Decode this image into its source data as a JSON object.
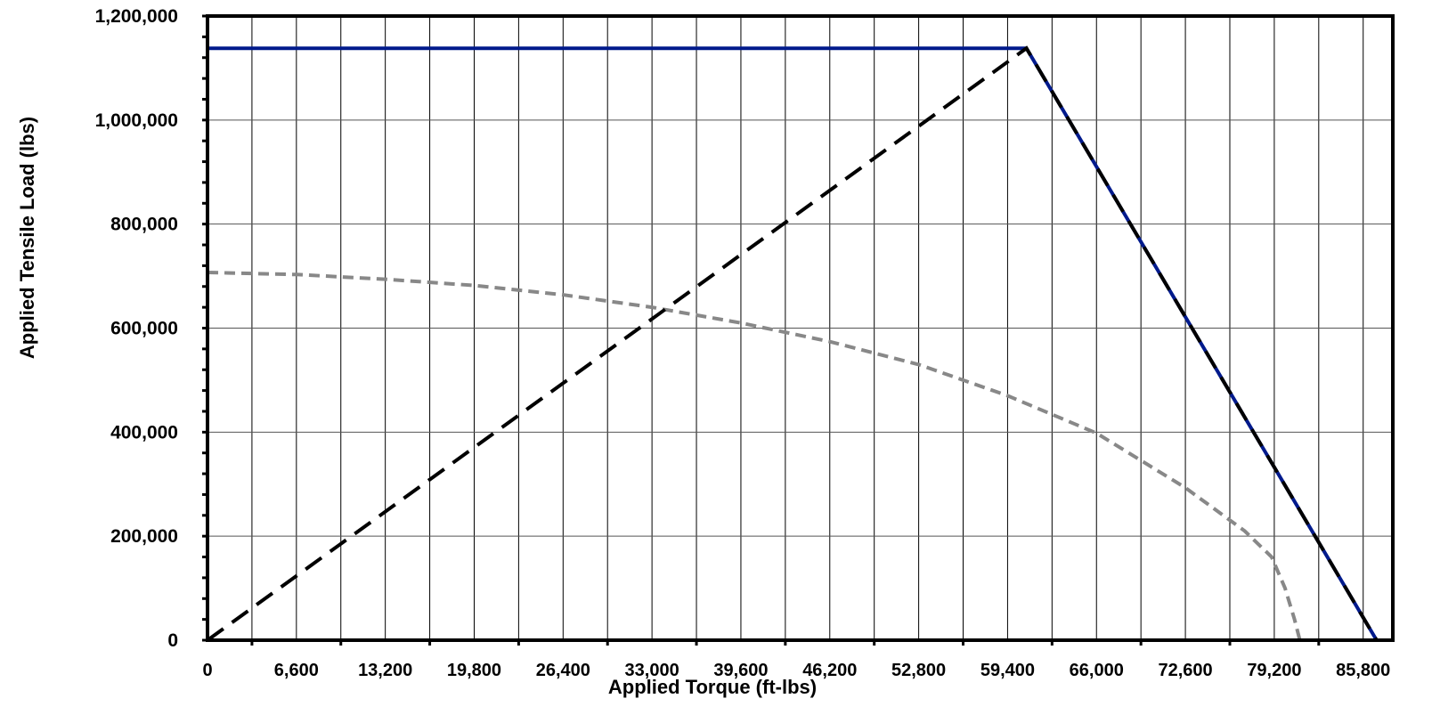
{
  "chart_data": {
    "type": "line",
    "title": "",
    "xlabel": "Applied Torque (ft-lbs)",
    "ylabel": "Applied Tensile Load (lbs)",
    "xlim": [
      0,
      88000
    ],
    "ylim": [
      0,
      1200000
    ],
    "x_ticks": [
      0,
      6600,
      13200,
      19800,
      26400,
      33000,
      39600,
      46200,
      52800,
      59400,
      66000,
      72600,
      79200,
      85800
    ],
    "x_tick_labels": [
      "0",
      "6,600",
      "13,200",
      "19,800",
      "26,400",
      "33,000",
      "39,600",
      "46,200",
      "52,800",
      "59,400",
      "66,000",
      "72,600",
      "79,200",
      "85,800"
    ],
    "y_ticks": [
      0,
      200000,
      400000,
      600000,
      800000,
      1000000,
      1200000
    ],
    "y_tick_labels": [
      "0",
      "200,000",
      "400,000",
      "600,000",
      "800,000",
      "1,000,000",
      "1,200,000"
    ],
    "grid": true,
    "legend": "none",
    "series": [
      {
        "color": "#001a8c",
        "style": "solid",
        "points": [
          [
            0,
            1138000
          ],
          [
            60800,
            1138000
          ],
          [
            86800,
            0
          ]
        ]
      },
      {
        "color": "#000000",
        "style": "dashed",
        "points": [
          [
            0,
            0
          ],
          [
            60800,
            1138000
          ],
          [
            86800,
            0
          ]
        ]
      },
      {
        "color": "#888888",
        "style": "dashed",
        "points": [
          [
            0,
            707000
          ],
          [
            6600,
            703000
          ],
          [
            13200,
            694000
          ],
          [
            19800,
            682000
          ],
          [
            26400,
            664000
          ],
          [
            33000,
            640000
          ],
          [
            39600,
            610000
          ],
          [
            46200,
            574000
          ],
          [
            52800,
            530000
          ],
          [
            59400,
            470000
          ],
          [
            66000,
            398000
          ],
          [
            72600,
            293000
          ],
          [
            77000,
            210000
          ],
          [
            79000,
            160000
          ],
          [
            80000,
            100000
          ],
          [
            80700,
            40000
          ],
          [
            81100,
            0
          ],
          [
            88000,
            0
          ]
        ]
      }
    ]
  }
}
